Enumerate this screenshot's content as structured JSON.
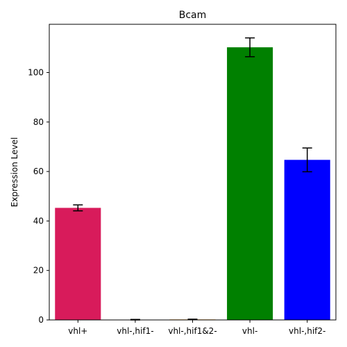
{
  "chart_data": {
    "type": "bar",
    "title": "Bcam",
    "xlabel": "",
    "ylabel": "Expression Level",
    "categories": [
      "vhl+",
      "vhl-,hif1-",
      "vhl-,hif1&2-",
      "vhl-",
      "vhl-,hif2-"
    ],
    "values": [
      45.3,
      0.1,
      0.2,
      110.2,
      64.7
    ],
    "errors": [
      1.2,
      0.1,
      0.1,
      3.8,
      4.8
    ],
    "colors": [
      "#d81b5b",
      "#f97306",
      "#ff9f1c",
      "#008000",
      "#0000ff"
    ],
    "ylim": [
      0,
      119.5
    ],
    "yticks": [
      0,
      20,
      40,
      60,
      80,
      100
    ],
    "grid": false
  }
}
